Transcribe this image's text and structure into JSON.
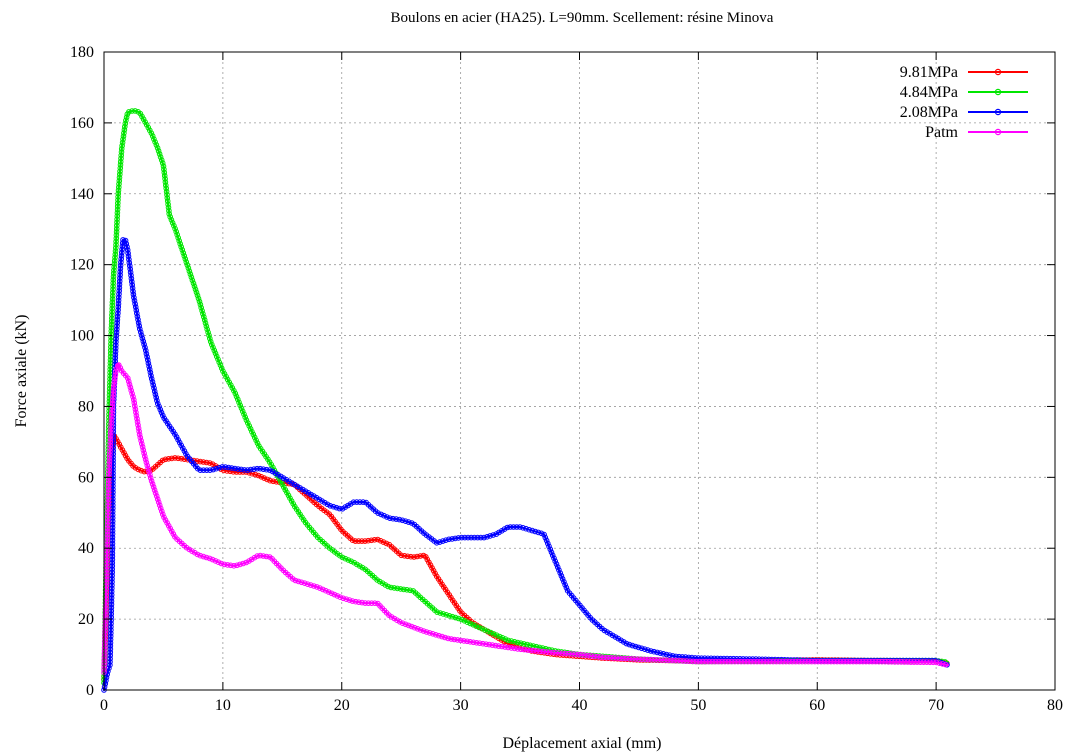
{
  "chart_data": {
    "type": "line",
    "title": "Boulons en acier (HA25). L=90mm. Scellement: résine Minova",
    "xlabel": "Déplacement axial (mm)",
    "ylabel": "Force axiale (kN)",
    "xlim": [
      0,
      80
    ],
    "ylim": [
      0,
      180
    ],
    "xticks": [
      0,
      10,
      20,
      30,
      40,
      50,
      60,
      70,
      80
    ],
    "yticks": [
      0,
      20,
      40,
      60,
      80,
      100,
      120,
      140,
      160,
      180
    ],
    "grid": true,
    "legend_position": "top-right",
    "series": [
      {
        "name": "9.81MPa",
        "color": "#ff0000",
        "marker": "circle",
        "x": [
          0,
          0.2,
          0.4,
          0.6,
          0.8,
          1.0,
          1.5,
          2.0,
          2.5,
          3.0,
          3.5,
          4.0,
          5.0,
          6.0,
          7.0,
          8.0,
          9.0,
          10.0,
          11.0,
          12.0,
          13.0,
          14.0,
          15.0,
          16.0,
          17.0,
          18.0,
          19.0,
          20.0,
          21.0,
          22.0,
          23.0,
          24.0,
          25.0,
          26.0,
          27.0,
          28.0,
          29.0,
          30.0,
          31.0,
          32.0,
          33.0,
          34.0,
          35.0,
          36.0,
          38.0,
          40.0,
          42.0,
          45.0,
          48.0,
          50.0,
          55.0,
          60.0,
          65.0,
          70.0,
          71.0
        ],
        "y": [
          3,
          25,
          50,
          65,
          72,
          71,
          68,
          65,
          63,
          62,
          61.5,
          62,
          65,
          65.5,
          65,
          64.5,
          64,
          62,
          61.5,
          61.5,
          60.5,
          59,
          58.5,
          58,
          55,
          52,
          49.5,
          45,
          42,
          42,
          42.5,
          41,
          38,
          37.5,
          38,
          32,
          27,
          22,
          19,
          17,
          15,
          13,
          12,
          11,
          10,
          9.5,
          9,
          8.5,
          8.3,
          8.2,
          8.3,
          8.5,
          8.3,
          8.2,
          7.5
        ]
      },
      {
        "name": "4.84MPa",
        "color": "#00e600",
        "marker": "circle",
        "x": [
          0,
          0.2,
          0.4,
          0.6,
          0.8,
          1.0,
          1.2,
          1.5,
          1.8,
          2.0,
          2.5,
          3.0,
          3.5,
          4.0,
          4.5,
          5.0,
          5.5,
          6.0,
          7.0,
          8.0,
          9.0,
          10.0,
          11.0,
          12.0,
          13.0,
          14.0,
          15.0,
          16.0,
          17.0,
          18.0,
          19.0,
          20.0,
          21.0,
          22.0,
          23.0,
          24.0,
          25.0,
          26.0,
          27.0,
          28.0,
          29.0,
          30.0,
          32.0,
          34.0,
          36.0,
          38.0,
          40.0,
          42.0,
          45.0,
          48.0,
          50.0,
          55.0,
          60.0,
          65.0,
          70.0,
          71.0
        ],
        "y": [
          2,
          40,
          75,
          100,
          117,
          125,
          140,
          153,
          160,
          163,
          163.5,
          163,
          160,
          157,
          153,
          148,
          134,
          130,
          120,
          110,
          98,
          90,
          84,
          76,
          69,
          64,
          58,
          52,
          47,
          43,
          40,
          37.5,
          36,
          34,
          31,
          29,
          28.5,
          28,
          25,
          22,
          21,
          20,
          17,
          14,
          12.5,
          11,
          10,
          9.5,
          8.7,
          8.3,
          8.0,
          8.2,
          8.3,
          8.3,
          8.3,
          7.8
        ]
      },
      {
        "name": "2.08MPa",
        "color": "#0000ff",
        "marker": "circle",
        "x": [
          0,
          0.3,
          0.5,
          0.6,
          0.7,
          0.8,
          1.0,
          1.2,
          1.4,
          1.6,
          1.8,
          2.0,
          2.5,
          3.0,
          3.5,
          4.0,
          4.5,
          5.0,
          6.0,
          7.0,
          8.0,
          9.0,
          10.0,
          11.0,
          12.0,
          13.0,
          14.0,
          15.0,
          16.0,
          17.0,
          18.0,
          19.0,
          20.0,
          21.0,
          22.0,
          23.0,
          24.0,
          25.0,
          26.0,
          27.0,
          28.0,
          29.0,
          30.0,
          31.0,
          32.0,
          33.0,
          34.0,
          35.0,
          36.0,
          37.0,
          38.0,
          39.0,
          40.0,
          41.0,
          42.0,
          44.0,
          46.0,
          48.0,
          50.0,
          55.0,
          60.0,
          65.0,
          70.0,
          71.0
        ],
        "y": [
          0,
          5,
          7,
          20,
          35,
          80,
          98,
          108,
          120,
          127,
          127,
          124,
          111,
          102,
          96,
          88,
          81,
          77,
          72,
          66,
          62,
          62,
          63,
          62.5,
          62,
          62.5,
          62,
          60,
          58,
          56,
          54,
          52,
          51,
          53,
          53,
          50,
          48.5,
          48,
          47,
          44,
          41.5,
          42.5,
          43,
          43,
          43,
          44,
          46,
          46,
          45,
          44,
          36,
          28,
          24,
          20,
          17,
          13,
          11,
          9.5,
          9,
          8.7,
          8.3,
          8.3,
          8.3,
          7
        ]
      },
      {
        "name": "Patm",
        "color": "#ff00ff",
        "marker": "circle",
        "x": [
          0,
          0.2,
          0.4,
          0.6,
          0.8,
          1.0,
          1.2,
          1.5,
          2.0,
          2.5,
          3.0,
          3.5,
          4.0,
          4.5,
          5.0,
          6.0,
          7.0,
          8.0,
          9.0,
          10.0,
          11.0,
          12.0,
          13.0,
          14.0,
          15.0,
          16.0,
          17.0,
          18.0,
          19.0,
          20.0,
          21.0,
          22.0,
          23.0,
          24.0,
          25.0,
          27.0,
          29.0,
          31.0,
          33.0,
          35.0,
          38.0,
          40.0,
          42.0,
          45.0,
          48.0,
          50.0,
          55.0,
          60.0,
          65.0,
          70.0,
          71.0
        ],
        "y": [
          5,
          30,
          60,
          75,
          85,
          90,
          92,
          90,
          88,
          82,
          72,
          65,
          59,
          54,
          49,
          43,
          40,
          38,
          37,
          35.5,
          35,
          36,
          38,
          37.5,
          34,
          31,
          30,
          29,
          27.5,
          26,
          25,
          24.5,
          24.5,
          21,
          19,
          16.5,
          14.5,
          13.5,
          12.5,
          11.5,
          10.5,
          10,
          9.2,
          8.7,
          8.3,
          8.0,
          8.0,
          8.0,
          8.0,
          7.8,
          7.0
        ]
      }
    ]
  }
}
